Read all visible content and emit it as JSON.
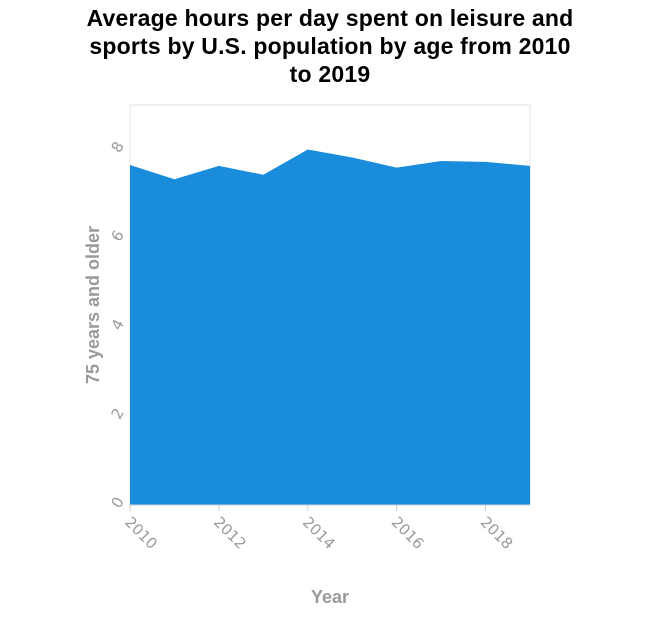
{
  "chart_data": {
    "type": "area",
    "title": "Average hours per day spent on leisure and sports by U.S. population by age from 2010 to 2019",
    "xlabel": "Year",
    "ylabel": "75 years and older",
    "x": [
      2010,
      2011,
      2012,
      2013,
      2014,
      2015,
      2016,
      2017,
      2018,
      2019
    ],
    "series": [
      {
        "values": [
          7.65,
          7.33,
          7.63,
          7.43,
          8.0,
          7.82,
          7.59,
          7.74,
          7.72,
          7.63
        ]
      }
    ],
    "xlim": [
      2010,
      2019
    ],
    "ylim": [
      0,
      9
    ],
    "xticks": [
      "2010",
      "2012",
      "2014",
      "2016",
      "2018"
    ],
    "yticks": [
      "0",
      "2",
      "4",
      "6",
      "8"
    ],
    "grid": false,
    "colors": {
      "fill": "#1a8cdc",
      "axis": "#cccccc",
      "tick_text": "#9a9a9a",
      "title_text": "#000000"
    }
  }
}
